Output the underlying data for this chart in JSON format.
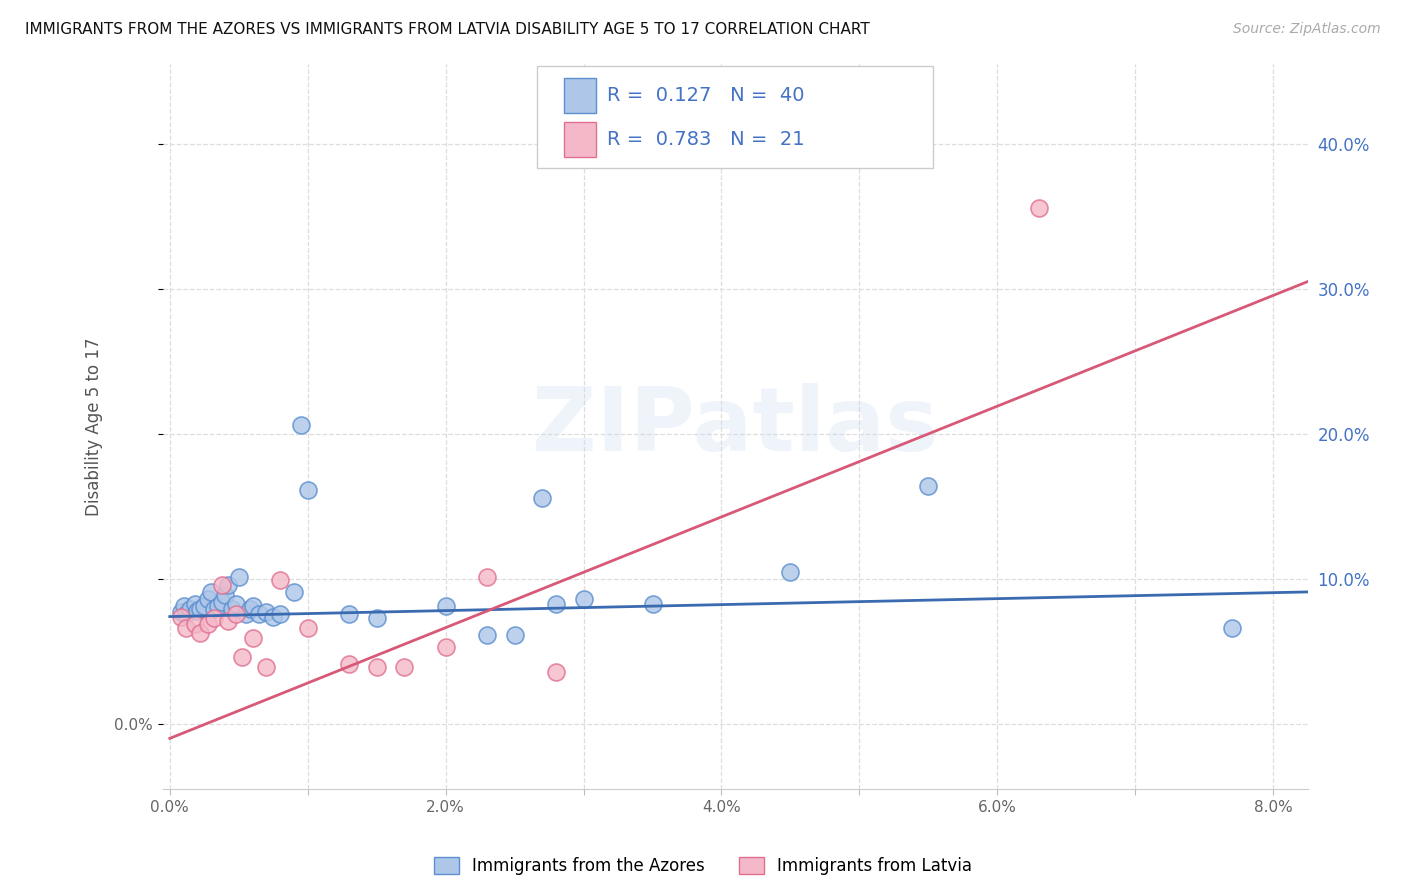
{
  "title": "IMMIGRANTS FROM THE AZORES VS IMMIGRANTS FROM LATVIA DISABILITY AGE 5 TO 17 CORRELATION CHART",
  "source": "Source: ZipAtlas.com",
  "ylabel": "Disability Age 5 to 17",
  "xlim": [
    -0.0005,
    0.0825
  ],
  "ylim": [
    -0.045,
    0.455
  ],
  "ytick_values": [
    0.0,
    0.1,
    0.2,
    0.3,
    0.4
  ],
  "xtick_values": [
    0.0,
    0.01,
    0.02,
    0.03,
    0.04,
    0.05,
    0.06,
    0.07,
    0.08
  ],
  "xtick_labels": [
    "0.0%",
    "",
    "2.0%",
    "",
    "4.0%",
    "",
    "6.0%",
    "",
    "8.0%"
  ],
  "right_ytick_labels": [
    "10.0%",
    "20.0%",
    "30.0%",
    "40.0%"
  ],
  "right_ytick_values": [
    0.1,
    0.2,
    0.3,
    0.4
  ],
  "azores_R": "0.127",
  "azores_N": "40",
  "latvia_R": "0.783",
  "latvia_N": "21",
  "azores_face_color": "#aec6e8",
  "latvia_face_color": "#f5b8c8",
  "azores_edge_color": "#5b8fcf",
  "latvia_edge_color": "#e07090",
  "azores_line_color": "#3a6ab0",
  "latvia_line_color": "#d85878",
  "legend_text_color": "#4472c4",
  "azores_x": [
    0.0008,
    0.001,
    0.0012,
    0.0015,
    0.0018,
    0.002,
    0.0022,
    0.0025,
    0.0028,
    0.003,
    0.0032,
    0.0035,
    0.0038,
    0.004,
    0.0042,
    0.0045,
    0.0048,
    0.005,
    0.0055,
    0.0058,
    0.006,
    0.0065,
    0.007,
    0.0075,
    0.008,
    0.009,
    0.0095,
    0.01,
    0.013,
    0.015,
    0.02,
    0.023,
    0.025,
    0.027,
    0.028,
    0.03,
    0.035,
    0.045,
    0.055,
    0.077
  ],
  "azores_y": [
    0.077,
    0.081,
    0.076,
    0.079,
    0.083,
    0.078,
    0.079,
    0.081,
    0.086,
    0.091,
    0.079,
    0.081,
    0.084,
    0.089,
    0.096,
    0.079,
    0.083,
    0.101,
    0.076,
    0.079,
    0.081,
    0.076,
    0.077,
    0.074,
    0.076,
    0.091,
    0.206,
    0.161,
    0.076,
    0.073,
    0.081,
    0.061,
    0.061,
    0.156,
    0.083,
    0.086,
    0.083,
    0.105,
    0.164,
    0.066
  ],
  "latvia_x": [
    0.0008,
    0.0012,
    0.0018,
    0.0022,
    0.0028,
    0.0032,
    0.0038,
    0.0042,
    0.0048,
    0.0052,
    0.006,
    0.007,
    0.008,
    0.01,
    0.013,
    0.015,
    0.017,
    0.02,
    0.023,
    0.028,
    0.063
  ],
  "latvia_y": [
    0.074,
    0.066,
    0.069,
    0.063,
    0.069,
    0.073,
    0.096,
    0.071,
    0.076,
    0.046,
    0.059,
    0.039,
    0.099,
    0.066,
    0.041,
    0.039,
    0.039,
    0.053,
    0.101,
    0.036,
    0.356
  ],
  "azores_trend_x0": 0.0,
  "azores_trend_x1": 0.0825,
  "azores_trend_y0": 0.074,
  "azores_trend_y1": 0.091,
  "latvia_trend_x0": 0.0,
  "latvia_trend_x1": 0.0825,
  "latvia_trend_y0": -0.01,
  "latvia_trend_y1": 0.305,
  "watermark_text": "ZIPatlas",
  "bg_color": "#ffffff",
  "grid_color": "#dddddd",
  "right_axis_color": "#4472c4",
  "legend_azores_label": "Immigrants from the Azores",
  "legend_latvia_label": "Immigrants from Latvia"
}
